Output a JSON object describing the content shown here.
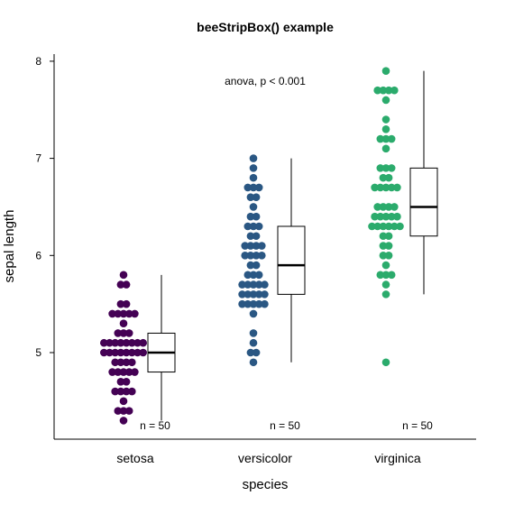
{
  "chart_data": {
    "type": "scatter",
    "title": "beeStripBox() example",
    "xlabel": "species",
    "ylabel": "sepal length",
    "ylim": [
      4.15,
      8.1
    ],
    "yticks": [
      5,
      6,
      7,
      8
    ],
    "grid": false,
    "annotation": "anova, p < 0.001",
    "categories": [
      "setosa",
      "versicolor",
      "virginica"
    ],
    "series": [
      {
        "category": "setosa",
        "color": "#440154",
        "n_label": "n = 50",
        "values": [
          5.1,
          4.9,
          4.7,
          4.6,
          5.0,
          5.4,
          4.6,
          5.0,
          4.4,
          4.9,
          5.4,
          4.8,
          4.8,
          4.3,
          5.8,
          5.7,
          5.4,
          5.1,
          5.7,
          5.1,
          5.4,
          5.1,
          4.6,
          5.1,
          4.8,
          5.0,
          5.0,
          5.2,
          5.2,
          4.7,
          4.8,
          5.4,
          5.2,
          5.5,
          4.9,
          5.0,
          5.5,
          4.9,
          4.4,
          5.1,
          5.0,
          4.5,
          4.4,
          5.0,
          5.1,
          4.8,
          5.1,
          4.6,
          5.3,
          5.0
        ],
        "box": {
          "min": 4.3,
          "q1": 4.8,
          "median": 5.0,
          "q3": 5.2,
          "max": 5.8
        }
      },
      {
        "category": "versicolor",
        "color": "#2A5783",
        "n_label": "n = 50",
        "values": [
          7.0,
          6.4,
          6.9,
          5.5,
          6.5,
          5.7,
          6.3,
          4.9,
          6.6,
          5.2,
          5.0,
          5.9,
          6.0,
          6.1,
          5.6,
          6.7,
          5.6,
          5.8,
          6.2,
          5.6,
          5.9,
          6.1,
          6.3,
          6.1,
          6.4,
          6.6,
          6.8,
          6.7,
          6.0,
          5.7,
          5.5,
          5.5,
          5.8,
          6.0,
          5.4,
          6.0,
          6.7,
          6.3,
          5.6,
          5.5,
          5.5,
          6.1,
          5.8,
          5.0,
          5.6,
          5.7,
          5.7,
          6.2,
          5.1,
          5.7
        ],
        "box": {
          "min": 4.9,
          "q1": 5.6,
          "median": 5.9,
          "q3": 6.3,
          "max": 7.0
        }
      },
      {
        "category": "virginica",
        "color": "#2BAB6C",
        "n_label": "n = 50",
        "values": [
          6.3,
          5.8,
          7.1,
          6.3,
          6.5,
          7.6,
          4.9,
          7.3,
          6.7,
          7.2,
          6.5,
          6.4,
          6.8,
          5.7,
          5.8,
          6.4,
          6.5,
          7.7,
          7.7,
          6.0,
          6.9,
          5.6,
          7.7,
          6.3,
          6.7,
          7.2,
          6.2,
          6.1,
          6.4,
          7.2,
          7.4,
          7.9,
          6.4,
          6.3,
          6.1,
          7.7,
          6.3,
          6.4,
          6.0,
          6.9,
          6.7,
          6.9,
          5.8,
          6.8,
          6.7,
          6.7,
          6.3,
          6.5,
          6.2,
          5.9
        ],
        "box": {
          "min": 5.6,
          "q1": 6.2,
          "median": 6.5,
          "q3": 6.9,
          "max": 7.9
        }
      }
    ]
  }
}
